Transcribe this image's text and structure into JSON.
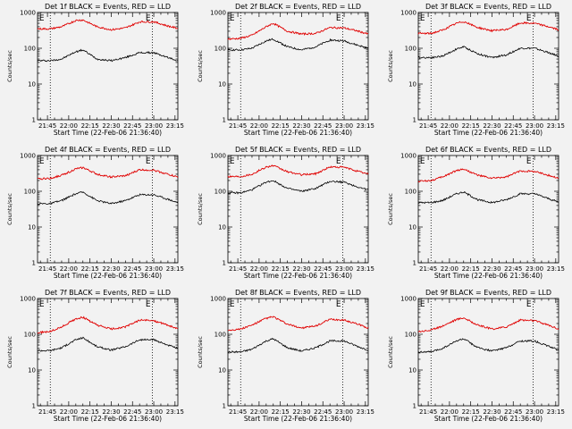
{
  "figure": {
    "background": "#f2f2f2",
    "series_colors": {
      "events": "#000000",
      "lld": "#e00000"
    }
  },
  "chart_data": [
    {
      "type": "line",
      "title": "Det 1f BLACK = Events, RED = LLD",
      "xlabel": "Start Time (22-Feb-06 21:36:40)",
      "ylabel": "Counts/sec",
      "yscale": "log",
      "ylim": [
        1,
        1000
      ],
      "xlim": [
        "21:38",
        "23:17"
      ],
      "xticks": [
        "21:45",
        "22:00",
        "22:15",
        "22:30",
        "22:45",
        "23:00",
        "23:15"
      ],
      "yticks": [
        1,
        10,
        100,
        1000
      ],
      "grid": false,
      "markers": [
        {
          "label": "E",
          "x": "21:41"
        },
        {
          "label": "E",
          "x": "22:56"
        }
      ],
      "vlines": [
        "21:47",
        "22:59"
      ],
      "series": [
        {
          "color": "#000000",
          "x": [
            "21:38",
            "21:47",
            "21:55",
            "22:05",
            "22:10",
            "22:20",
            "22:30",
            "22:40",
            "22:50",
            "23:00",
            "23:10",
            "23:17"
          ],
          "values": [
            45,
            45,
            50,
            80,
            90,
            50,
            45,
            55,
            75,
            75,
            55,
            45
          ]
        },
        {
          "color": "#e00000",
          "x": [
            "21:38",
            "21:47",
            "21:55",
            "22:05",
            "22:10",
            "22:20",
            "22:30",
            "22:40",
            "22:50",
            "23:00",
            "23:10",
            "23:17"
          ],
          "values": [
            350,
            350,
            400,
            600,
            620,
            400,
            330,
            370,
            550,
            550,
            420,
            360
          ]
        }
      ]
    },
    {
      "type": "line",
      "title": "Det 2f BLACK = Events, RED = LLD",
      "xlabel": "Start Time (22-Feb-06 21:36:40)",
      "ylabel": "Counts/sec",
      "yscale": "log",
      "ylim": [
        1,
        1000
      ],
      "xlim": [
        "21:38",
        "23:17"
      ],
      "xticks": [
        "21:45",
        "22:00",
        "22:15",
        "22:30",
        "22:45",
        "23:00",
        "23:15"
      ],
      "yticks": [
        1,
        10,
        100,
        1000
      ],
      "grid": false,
      "markers": [
        {
          "label": "E",
          "x": "21:41"
        },
        {
          "label": "E",
          "x": "22:56"
        }
      ],
      "vlines": [
        "21:47",
        "22:59"
      ],
      "series": [
        {
          "color": "#000000",
          "x": [
            "21:38",
            "21:47",
            "21:55",
            "22:05",
            "22:10",
            "22:20",
            "22:30",
            "22:40",
            "22:50",
            "23:00",
            "23:10",
            "23:17"
          ],
          "values": [
            90,
            90,
            100,
            160,
            180,
            110,
            90,
            110,
            170,
            160,
            120,
            100
          ]
        },
        {
          "color": "#e00000",
          "x": [
            "21:38",
            "21:47",
            "21:55",
            "22:05",
            "22:10",
            "22:20",
            "22:30",
            "22:40",
            "22:50",
            "23:00",
            "23:10",
            "23:17"
          ],
          "values": [
            180,
            190,
            230,
            400,
            500,
            300,
            250,
            260,
            380,
            370,
            300,
            250
          ]
        }
      ]
    },
    {
      "type": "line",
      "title": "Det 3f BLACK = Events, RED = LLD",
      "xlabel": "Start Time (22-Feb-06 21:36:40)",
      "ylabel": "Counts/sec",
      "yscale": "log",
      "ylim": [
        1,
        1000
      ],
      "xlim": [
        "21:38",
        "23:17"
      ],
      "xticks": [
        "21:45",
        "22:00",
        "22:15",
        "22:30",
        "22:45",
        "23:00",
        "23:15"
      ],
      "yticks": [
        1,
        10,
        100,
        1000
      ],
      "grid": false,
      "markers": [
        {
          "label": "E",
          "x": "21:41"
        },
        {
          "label": "E",
          "x": "22:56"
        }
      ],
      "vlines": [
        "21:47",
        "22:59"
      ],
      "series": [
        {
          "color": "#000000",
          "x": [
            "21:38",
            "21:47",
            "21:55",
            "22:05",
            "22:10",
            "22:20",
            "22:30",
            "22:40",
            "22:50",
            "23:00",
            "23:10",
            "23:17"
          ],
          "values": [
            55,
            55,
            60,
            95,
            110,
            70,
            55,
            65,
            100,
            100,
            75,
            60
          ]
        },
        {
          "color": "#e00000",
          "x": [
            "21:38",
            "21:47",
            "21:55",
            "22:05",
            "22:10",
            "22:20",
            "22:30",
            "22:40",
            "22:50",
            "23:00",
            "23:10",
            "23:17"
          ],
          "values": [
            260,
            260,
            320,
            500,
            560,
            380,
            310,
            330,
            510,
            500,
            400,
            330
          ]
        }
      ]
    },
    {
      "type": "line",
      "title": "Det 4f BLACK = Events, RED = LLD",
      "xlabel": "Start Time (22-Feb-06 21:36:40)",
      "ylabel": "Counts/sec",
      "yscale": "log",
      "ylim": [
        1,
        1000
      ],
      "xlim": [
        "21:38",
        "23:17"
      ],
      "xticks": [
        "21:45",
        "22:00",
        "22:15",
        "22:30",
        "22:45",
        "23:00",
        "23:15"
      ],
      "yticks": [
        1,
        10,
        100,
        1000
      ],
      "grid": false,
      "markers": [
        {
          "label": "E",
          "x": "21:41"
        },
        {
          "label": "E",
          "x": "22:56"
        }
      ],
      "vlines": [
        "21:47",
        "22:59"
      ],
      "series": [
        {
          "color": "#000000",
          "x": [
            "21:38",
            "21:47",
            "21:55",
            "22:05",
            "22:10",
            "22:20",
            "22:30",
            "22:40",
            "22:50",
            "23:00",
            "23:10",
            "23:17"
          ],
          "values": [
            45,
            45,
            55,
            85,
            95,
            55,
            45,
            55,
            80,
            80,
            60,
            48
          ]
        },
        {
          "color": "#e00000",
          "x": [
            "21:38",
            "21:47",
            "21:55",
            "22:05",
            "22:10",
            "22:20",
            "22:30",
            "22:40",
            "22:50",
            "23:00",
            "23:10",
            "23:17"
          ],
          "values": [
            220,
            230,
            280,
            420,
            460,
            300,
            250,
            270,
            400,
            390,
            300,
            250
          ]
        }
      ]
    },
    {
      "type": "line",
      "title": "Det 5f BLACK = Events, RED = LLD",
      "xlabel": "Start Time (22-Feb-06 21:36:40)",
      "ylabel": "Counts/sec",
      "yscale": "log",
      "ylim": [
        1,
        1000
      ],
      "xlim": [
        "21:38",
        "23:17"
      ],
      "xticks": [
        "21:45",
        "22:00",
        "22:15",
        "22:30",
        "22:45",
        "23:00",
        "23:15"
      ],
      "yticks": [
        1,
        10,
        100,
        1000
      ],
      "grid": false,
      "markers": [
        {
          "label": "E",
          "x": "21:41"
        },
        {
          "label": "E",
          "x": "22:56"
        }
      ],
      "vlines": [
        "21:47",
        "22:59"
      ],
      "series": [
        {
          "color": "#000000",
          "x": [
            "21:38",
            "21:47",
            "21:55",
            "22:05",
            "22:10",
            "22:20",
            "22:30",
            "22:40",
            "22:50",
            "23:00",
            "23:10",
            "23:17"
          ],
          "values": [
            90,
            90,
            110,
            180,
            200,
            120,
            100,
            120,
            190,
            180,
            130,
            110
          ]
        },
        {
          "color": "#e00000",
          "x": [
            "21:38",
            "21:47",
            "21:55",
            "22:05",
            "22:10",
            "22:20",
            "22:30",
            "22:40",
            "22:50",
            "23:00",
            "23:10",
            "23:17"
          ],
          "values": [
            260,
            260,
            300,
            480,
            520,
            350,
            290,
            310,
            480,
            470,
            360,
            300
          ]
        }
      ]
    },
    {
      "type": "line",
      "title": "Det 6f BLACK = Events, RED = LLD",
      "xlabel": "Start Time (22-Feb-06 21:36:40)",
      "ylabel": "Counts/sec",
      "yscale": "log",
      "ylim": [
        1,
        1000
      ],
      "xlim": [
        "21:38",
        "23:17"
      ],
      "xticks": [
        "21:45",
        "22:00",
        "22:15",
        "22:30",
        "22:45",
        "23:00",
        "23:15"
      ],
      "yticks": [
        1,
        10,
        100,
        1000
      ],
      "grid": false,
      "markers": [
        {
          "label": "E",
          "x": "21:41"
        },
        {
          "label": "E",
          "x": "22:56"
        }
      ],
      "vlines": [
        "21:47",
        "22:59"
      ],
      "series": [
        {
          "color": "#000000",
          "x": [
            "21:38",
            "21:47",
            "21:55",
            "22:05",
            "22:10",
            "22:20",
            "22:30",
            "22:40",
            "22:50",
            "23:00",
            "23:10",
            "23:17"
          ],
          "values": [
            48,
            48,
            55,
            85,
            95,
            58,
            48,
            58,
            85,
            85,
            62,
            50
          ]
        },
        {
          "color": "#e00000",
          "x": [
            "21:38",
            "21:47",
            "21:55",
            "22:05",
            "22:10",
            "22:20",
            "22:30",
            "22:40",
            "22:50",
            "23:00",
            "23:10",
            "23:17"
          ],
          "values": [
            190,
            200,
            250,
            380,
            420,
            280,
            230,
            250,
            370,
            360,
            280,
            230
          ]
        }
      ]
    },
    {
      "type": "line",
      "title": "Det 7f BLACK = Events, RED = LLD",
      "xlabel": "Start Time (22-Feb-06 21:36:40)",
      "ylabel": "Counts/sec",
      "yscale": "log",
      "ylim": [
        1,
        1000
      ],
      "xlim": [
        "21:38",
        "23:17"
      ],
      "xticks": [
        "21:45",
        "22:00",
        "22:15",
        "22:30",
        "22:45",
        "23:00",
        "23:15"
      ],
      "yticks": [
        1,
        10,
        100,
        1000
      ],
      "grid": false,
      "markers": [
        {
          "label": "E",
          "x": "21:41"
        },
        {
          "label": "E",
          "x": "22:56"
        }
      ],
      "vlines": [
        "21:47",
        "22:59"
      ],
      "series": [
        {
          "color": "#000000",
          "x": [
            "21:38",
            "21:47",
            "21:55",
            "22:05",
            "22:10",
            "22:20",
            "22:30",
            "22:40",
            "22:50",
            "23:00",
            "23:10",
            "23:17"
          ],
          "values": [
            35,
            35,
            42,
            70,
            80,
            45,
            36,
            45,
            70,
            70,
            50,
            40
          ]
        },
        {
          "color": "#e00000",
          "x": [
            "21:38",
            "21:47",
            "21:55",
            "22:05",
            "22:10",
            "22:20",
            "22:30",
            "22:40",
            "22:50",
            "23:00",
            "23:10",
            "23:17"
          ],
          "values": [
            110,
            120,
            160,
            270,
            300,
            180,
            140,
            160,
            250,
            240,
            180,
            140
          ]
        }
      ]
    },
    {
      "type": "line",
      "title": "Det 8f BLACK = Events, RED = LLD",
      "xlabel": "Start Time (22-Feb-06 21:36:40)",
      "ylabel": "Counts/sec",
      "yscale": "log",
      "ylim": [
        1,
        1000
      ],
      "xlim": [
        "21:38",
        "23:17"
      ],
      "xticks": [
        "21:45",
        "22:00",
        "22:15",
        "22:30",
        "22:45",
        "23:00",
        "23:15"
      ],
      "yticks": [
        1,
        10,
        100,
        1000
      ],
      "grid": false,
      "markers": [
        {
          "label": "E",
          "x": "21:41"
        },
        {
          "label": "E",
          "x": "22:56"
        }
      ],
      "vlines": [
        "21:47",
        "22:59"
      ],
      "series": [
        {
          "color": "#000000",
          "x": [
            "21:38",
            "21:47",
            "21:55",
            "22:05",
            "22:10",
            "22:20",
            "22:30",
            "22:40",
            "22:50",
            "23:00",
            "23:10",
            "23:17"
          ],
          "values": [
            32,
            32,
            38,
            65,
            75,
            42,
            34,
            42,
            65,
            65,
            45,
            36
          ]
        },
        {
          "color": "#e00000",
          "x": [
            "21:38",
            "21:47",
            "21:55",
            "22:05",
            "22:10",
            "22:20",
            "22:30",
            "22:40",
            "22:50",
            "23:00",
            "23:10",
            "23:17"
          ],
          "values": [
            130,
            140,
            180,
            280,
            310,
            190,
            150,
            170,
            260,
            250,
            190,
            150
          ]
        }
      ]
    },
    {
      "type": "line",
      "title": "Det 9f BLACK = Events, RED = LLD",
      "xlabel": "Start Time (22-Feb-06 21:36:40)",
      "ylabel": "Counts/sec",
      "yscale": "log",
      "ylim": [
        1,
        1000
      ],
      "xlim": [
        "21:38",
        "23:17"
      ],
      "xticks": [
        "21:45",
        "22:00",
        "22:15",
        "22:30",
        "22:45",
        "23:00",
        "23:15"
      ],
      "yticks": [
        1,
        10,
        100,
        1000
      ],
      "grid": false,
      "markers": [
        {
          "label": "E",
          "x": "21:41"
        },
        {
          "label": "E",
          "x": "22:56"
        }
      ],
      "vlines": [
        "21:47",
        "22:59"
      ],
      "series": [
        {
          "color": "#000000",
          "x": [
            "21:38",
            "21:47",
            "21:55",
            "22:05",
            "22:10",
            "22:20",
            "22:30",
            "22:40",
            "22:50",
            "23:00",
            "23:10",
            "23:17"
          ],
          "values": [
            32,
            32,
            40,
            65,
            75,
            42,
            34,
            42,
            65,
            65,
            46,
            36
          ]
        },
        {
          "color": "#e00000",
          "x": [
            "21:38",
            "21:47",
            "21:55",
            "22:05",
            "22:10",
            "22:20",
            "22:30",
            "22:40",
            "22:50",
            "23:00",
            "23:10",
            "23:17"
          ],
          "values": [
            120,
            130,
            170,
            260,
            290,
            180,
            140,
            160,
            250,
            240,
            180,
            140
          ]
        }
      ]
    }
  ]
}
